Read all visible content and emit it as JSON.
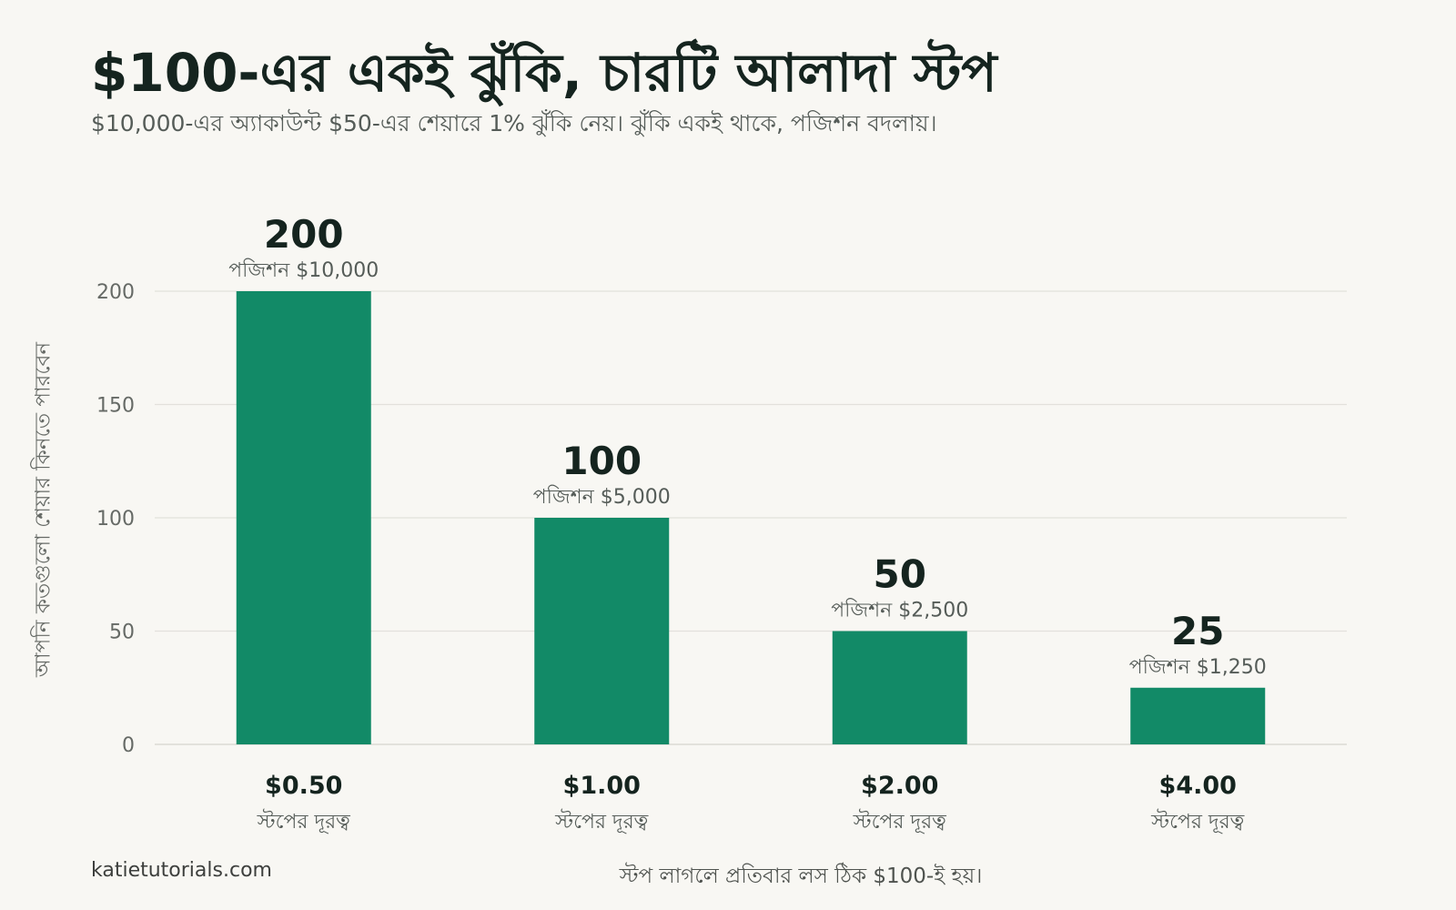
{
  "header": {
    "title": "$100-এর একই ঝুঁকি, চারটি আলাদা স্টপ",
    "subtitle": "$10,000-এর অ্যাকাউন্ট $50-এর শেয়ারে 1% ঝুঁকি নেয়। ঝুঁকি একই থাকে, পজিশন বদলায়।"
  },
  "footer": {
    "source": "katietutorials.com",
    "note": "স্টপ লাগলে প্রতিবার লস ঠিক $100-ই হয়।"
  },
  "colors": {
    "bar": "#128a67",
    "grid": "#e2e1dc",
    "text_dark": "#15241f",
    "text_muted": "#555c58"
  },
  "chart_data": {
    "type": "bar",
    "title": "$100-এর একই ঝুঁকি, চারটি আলাদা স্টপ",
    "ylabel": "আপনি কতগুলো শেয়ার কিনতে পারবেন",
    "xlabel": "",
    "ylim": [
      0,
      200
    ],
    "yticks": [
      0,
      50,
      100,
      150,
      200
    ],
    "grid": true,
    "categories": [
      "$0.50",
      "$1.00",
      "$2.00",
      "$4.00"
    ],
    "category_sublabel": "স্টপের দূরত্ব",
    "values": [
      200,
      100,
      50,
      25
    ],
    "bar_annotations": [
      "পজিশন $10,000",
      "পজিশন $5,000",
      "পজিশন $2,500",
      "পজিশন $1,250"
    ]
  }
}
